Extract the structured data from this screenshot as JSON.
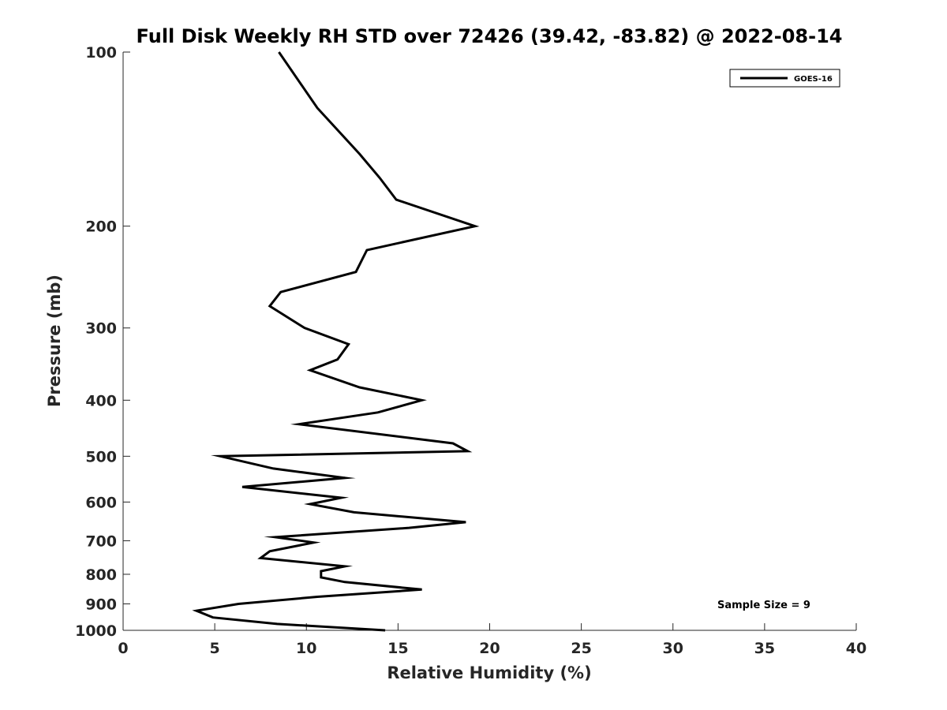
{
  "chart_data": {
    "type": "line",
    "title": "Full Disk Weekly RH STD over 72426 (39.42, -83.82) @ 2022-08-14",
    "xlabel": "Relative Humidity (%)",
    "ylabel": "Pressure (mb)",
    "xlim": [
      0,
      40
    ],
    "ylim": [
      100,
      1000
    ],
    "yscale": "log",
    "y_reversed": true,
    "grid": false,
    "legend_position": "top-right",
    "x_ticks": [
      0,
      5,
      10,
      15,
      20,
      25,
      30,
      35,
      40
    ],
    "y_ticks": [
      100,
      200,
      300,
      400,
      500,
      600,
      700,
      800,
      900,
      1000
    ],
    "series": [
      {
        "name": "GOES-16",
        "color": "#000000",
        "points": [
          [
            8.5,
            100
          ],
          [
            10.6,
            125
          ],
          [
            12.9,
            150
          ],
          [
            14.0,
            165
          ],
          [
            14.9,
            180
          ],
          [
            19.2,
            200
          ],
          [
            13.3,
            220
          ],
          [
            12.7,
            240
          ],
          [
            8.6,
            260
          ],
          [
            8.0,
            275
          ],
          [
            9.9,
            300
          ],
          [
            12.3,
            320
          ],
          [
            11.7,
            340
          ],
          [
            10.2,
            355
          ],
          [
            12.9,
            380
          ],
          [
            16.3,
            400
          ],
          [
            13.9,
            420
          ],
          [
            9.6,
            440
          ],
          [
            18.0,
            475
          ],
          [
            18.8,
            490
          ],
          [
            5.3,
            500
          ],
          [
            8.2,
            525
          ],
          [
            12.1,
            545
          ],
          [
            6.5,
            565
          ],
          [
            11.9,
            590
          ],
          [
            10.2,
            605
          ],
          [
            12.6,
            625
          ],
          [
            18.7,
            650
          ],
          [
            15.6,
            665
          ],
          [
            8.3,
            690
          ],
          [
            10.4,
            705
          ],
          [
            8.0,
            730
          ],
          [
            7.5,
            750
          ],
          [
            12.1,
            775
          ],
          [
            10.8,
            790
          ],
          [
            10.8,
            810
          ],
          [
            12.1,
            825
          ],
          [
            16.3,
            850
          ],
          [
            10.6,
            875
          ],
          [
            6.3,
            900
          ],
          [
            4.0,
            925
          ],
          [
            4.9,
            950
          ],
          [
            8.4,
            975
          ],
          [
            14.3,
            1000
          ]
        ]
      }
    ],
    "annotations": [
      "Sample Size = 9"
    ]
  }
}
